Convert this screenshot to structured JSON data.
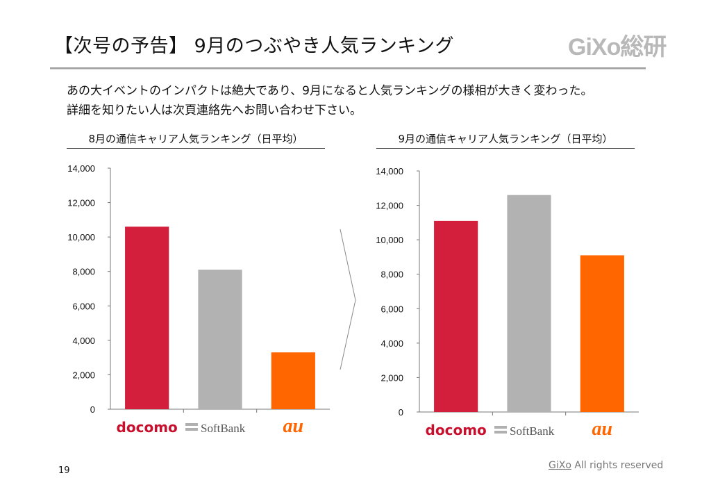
{
  "header": {
    "title": "【次号の予告】 9月のつぶやき人気ランキング",
    "logo_text": "GiXo総研"
  },
  "body": {
    "line1": "あの大イベントのインパクトは絶大であり、9月になると人気ランキングの様相が大きく変わった。",
    "line2": "詳細を知りたい人は次頁連絡先へお問い合わせ下さい。"
  },
  "chart_data": [
    {
      "type": "bar",
      "title": "8月の通信キャリア人気ランキング（日平均）",
      "categories": [
        "docomo",
        "SoftBank",
        "au"
      ],
      "values": [
        10600,
        8100,
        3300
      ],
      "colors": [
        "#d41f3c",
        "#b2b2b2",
        "#ff6600"
      ],
      "ylim": [
        0,
        14000
      ],
      "yticks": [
        "0",
        "2,000",
        "4,000",
        "6,000",
        "8,000",
        "10,000",
        "12,000",
        "14,000"
      ],
      "grid": false
    },
    {
      "type": "bar",
      "title": "9月の通信キャリア人気ランキング（日平均）",
      "categories": [
        "docomo",
        "SoftBank",
        "au"
      ],
      "values": [
        11100,
        12600,
        9100
      ],
      "colors": [
        "#d41f3c",
        "#b2b2b2",
        "#ff6600"
      ],
      "ylim": [
        0,
        14000
      ],
      "yticks": [
        "0",
        "2,000",
        "4,000",
        "6,000",
        "8,000",
        "10,000",
        "12,000",
        "14,000"
      ],
      "grid": false
    }
  ],
  "footer": {
    "page_number": "19",
    "copyright_brand": "GiXo",
    "copyright_text": " All rights reserved"
  }
}
